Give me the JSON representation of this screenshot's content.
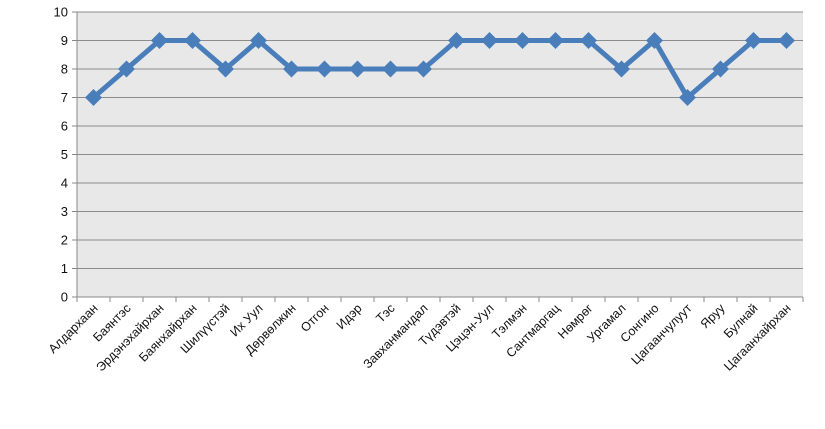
{
  "chart_data": {
    "type": "line",
    "categories": [
      "Алдархаан",
      "Баянтэс",
      "Эрдэнэхайрхан",
      "Баянхайрхан",
      "Шилүүстэй",
      "Их Уул",
      "Дөрвөлжин",
      "Отгон",
      "Идэр",
      "Тэс",
      "Завханмандал",
      "Түдэвтэй",
      "Цэцэн-Уул",
      "Тэлмэн",
      "Сантмаргац",
      "Нөмрөг",
      "Ургамал",
      "Сонгино",
      "Цагаанчулуут",
      "Яруу",
      "Булнай",
      "Цагаанхайрхан"
    ],
    "series": [
      {
        "values": [
          7,
          8,
          9,
          9,
          8,
          9,
          8,
          8,
          8,
          8,
          8,
          9,
          9,
          9,
          9,
          9,
          8,
          9,
          7,
          8,
          9,
          9
        ]
      }
    ],
    "ylim": [
      0,
      10
    ],
    "yticks": [
      0,
      1,
      2,
      3,
      4,
      5,
      6,
      7,
      8,
      9,
      10
    ],
    "grid": true,
    "legend": "none",
    "colors": {
      "line": "#4a7ebb",
      "plot_bg": "#e8e8e8",
      "grid": "#8c8c8c",
      "axis": "#888888"
    }
  }
}
